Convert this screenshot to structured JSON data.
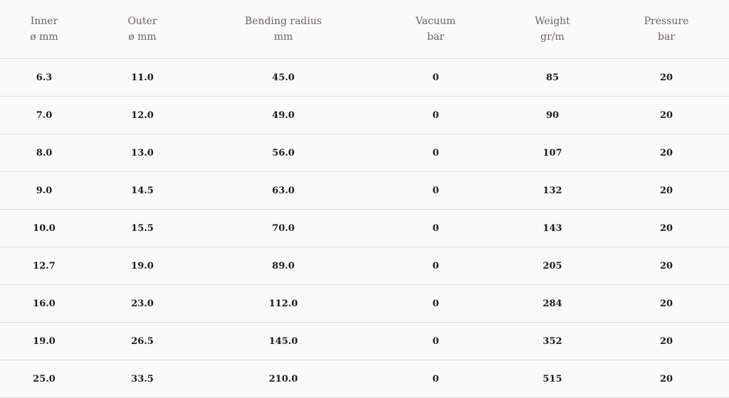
{
  "columns": [
    {
      "label": "Inner",
      "unit": "ø mm"
    },
    {
      "label": "Outer",
      "unit": "ø mm"
    },
    {
      "label": "Bending radius",
      "unit": "mm"
    },
    {
      "label": "Vacuum",
      "unit": "bar"
    },
    {
      "label": "Weight",
      "unit": "gr/m"
    },
    {
      "label": "Pressure",
      "unit": "bar"
    }
  ],
  "rows": [
    [
      "6.3",
      "11.0",
      "45.0",
      "0",
      "85",
      "20"
    ],
    [
      "7.0",
      "12.0",
      "49.0",
      "0",
      "90",
      "20"
    ],
    [
      "8.0",
      "13.0",
      "56.0",
      "0",
      "107",
      "20"
    ],
    [
      "9.0",
      "14.5",
      "63.0",
      "0",
      "132",
      "20"
    ],
    [
      "10.0",
      "15.5",
      "70.0",
      "0",
      "143",
      "20"
    ],
    [
      "12.7",
      "19.0",
      "89.0",
      "0",
      "205",
      "20"
    ],
    [
      "16.0",
      "23.0",
      "112.0",
      "0",
      "284",
      "20"
    ],
    [
      "19.0",
      "26.5",
      "145.0",
      "0",
      "352",
      "20"
    ],
    [
      "25.0",
      "33.5",
      "210.0",
      "0",
      "515",
      "20"
    ]
  ]
}
